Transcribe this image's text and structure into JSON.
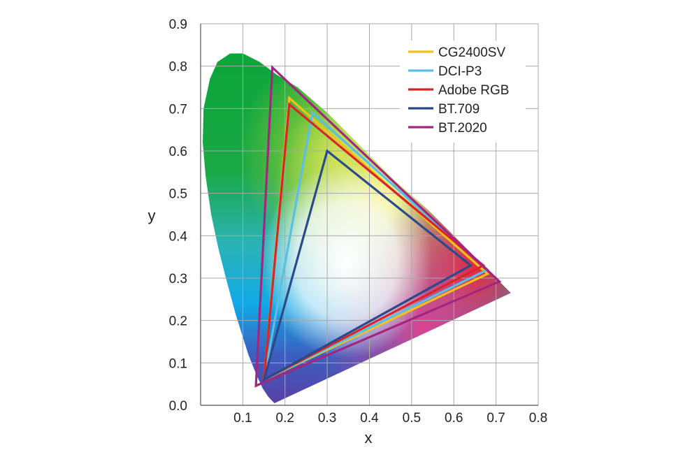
{
  "chart_data": {
    "type": "scatter",
    "title": "",
    "xlabel": "x",
    "ylabel": "y",
    "xlim": [
      0.0,
      0.8
    ],
    "ylim": [
      0.0,
      0.9
    ],
    "x_ticks": [
      "0.1",
      "0.2",
      "0.3",
      "0.4",
      "0.5",
      "0.6",
      "0.7",
      "0.8"
    ],
    "y_ticks": [
      "0.0",
      "0.1",
      "0.2",
      "0.3",
      "0.4",
      "0.5",
      "0.6",
      "0.7",
      "0.8",
      "0.9"
    ],
    "grid": true,
    "legend_position": "top-right",
    "spectral_locus": [
      [
        0.175,
        0.005
      ],
      [
        0.17,
        0.01
      ],
      [
        0.165,
        0.015
      ],
      [
        0.159,
        0.022
      ],
      [
        0.147,
        0.04
      ],
      [
        0.133,
        0.07
      ],
      [
        0.113,
        0.12
      ],
      [
        0.083,
        0.215
      ],
      [
        0.06,
        0.3
      ],
      [
        0.042,
        0.37
      ],
      [
        0.025,
        0.45
      ],
      [
        0.012,
        0.54
      ],
      [
        0.005,
        0.62
      ],
      [
        0.007,
        0.7
      ],
      [
        0.022,
        0.77
      ],
      [
        0.04,
        0.81
      ],
      [
        0.07,
        0.83
      ],
      [
        0.1,
        0.83
      ],
      [
        0.14,
        0.81
      ],
      [
        0.18,
        0.78
      ],
      [
        0.23,
        0.75
      ],
      [
        0.3,
        0.69
      ],
      [
        0.38,
        0.61
      ],
      [
        0.46,
        0.53
      ],
      [
        0.54,
        0.46
      ],
      [
        0.62,
        0.38
      ],
      [
        0.68,
        0.32
      ],
      [
        0.735,
        0.265
      ]
    ],
    "series": [
      {
        "name": "CG2400SV",
        "color": "#f2c21b",
        "points": [
          [
            0.68,
            0.31
          ],
          [
            0.21,
            0.725
          ],
          [
            0.15,
            0.06
          ]
        ]
      },
      {
        "name": "DCI-P3",
        "color": "#5bbfe3",
        "points": [
          [
            0.68,
            0.32
          ],
          [
            0.265,
            0.69
          ],
          [
            0.15,
            0.06
          ]
        ]
      },
      {
        "name": "Adobe RGB",
        "color": "#d6262a",
        "points": [
          [
            0.67,
            0.33
          ],
          [
            0.21,
            0.71
          ],
          [
            0.15,
            0.06
          ]
        ]
      },
      {
        "name": "BT.709",
        "color": "#2a4a8a",
        "points": [
          [
            0.64,
            0.33
          ],
          [
            0.3,
            0.6
          ],
          [
            0.15,
            0.06
          ]
        ]
      },
      {
        "name": "BT.2020",
        "color": "#a2267f",
        "points": [
          [
            0.708,
            0.292
          ],
          [
            0.17,
            0.797
          ],
          [
            0.131,
            0.046
          ]
        ]
      }
    ]
  }
}
